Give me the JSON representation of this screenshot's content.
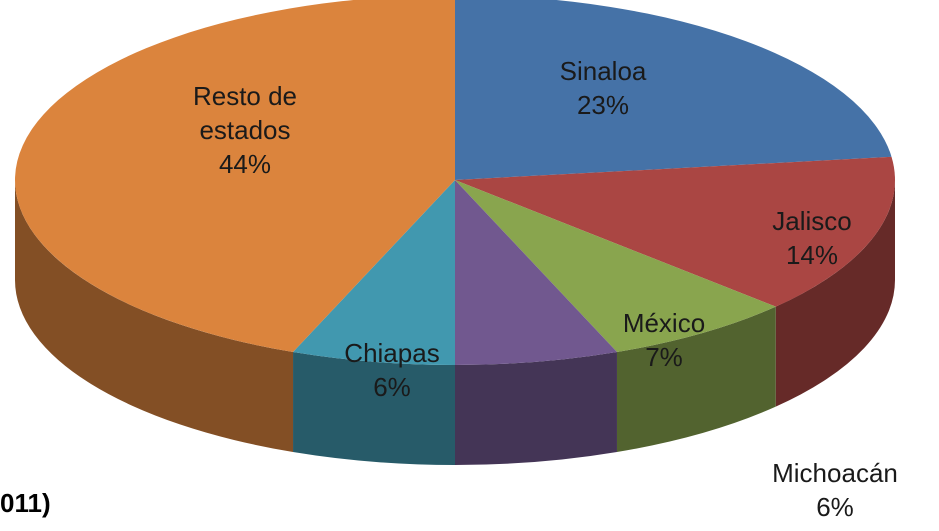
{
  "chart_data": {
    "type": "pie",
    "categories": [
      "Sinaloa",
      "Jalisco",
      "México",
      "Michoacán",
      "Chiapas",
      "Resto de estados"
    ],
    "values": [
      23,
      14,
      7,
      6,
      6,
      44
    ],
    "value_labels": [
      "23%",
      "14%",
      "7%",
      "6%",
      "6%",
      "44%"
    ],
    "colors": [
      "#4572a7",
      "#aa4643",
      "#89a54e",
      "#71588f",
      "#4198af",
      "#db843d"
    ],
    "note": "011)"
  }
}
